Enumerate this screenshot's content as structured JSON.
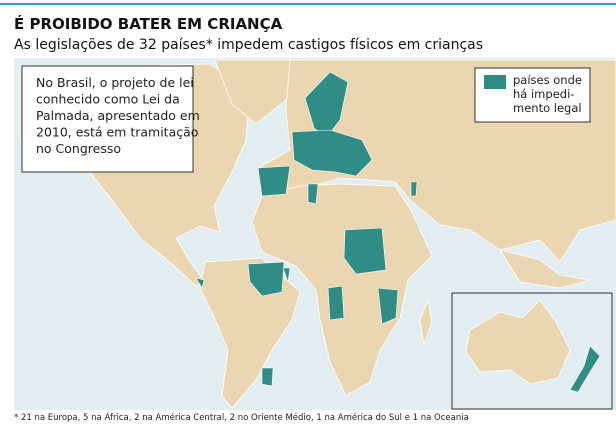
{
  "header": {
    "title": "É PROIBIDO BATER EM CRIANÇA",
    "subtitle": "As legislações de 32 países* impedem castigos físicos em crianças"
  },
  "note": {
    "lines": [
      "No Brasil, o projeto de lei",
      "conhecido como Lei da",
      "Palmada, apresentado em",
      "2010, está em tramitação",
      "no Congresso"
    ]
  },
  "legend": {
    "lines": [
      "países onde",
      "há impedi-",
      "mento legal"
    ]
  },
  "footnote": "* 21 na Europa, 5 na África, 2 na América Central, 2 no Oriente Médio, 1 na América do Sul e 1 na Oceania"
}
